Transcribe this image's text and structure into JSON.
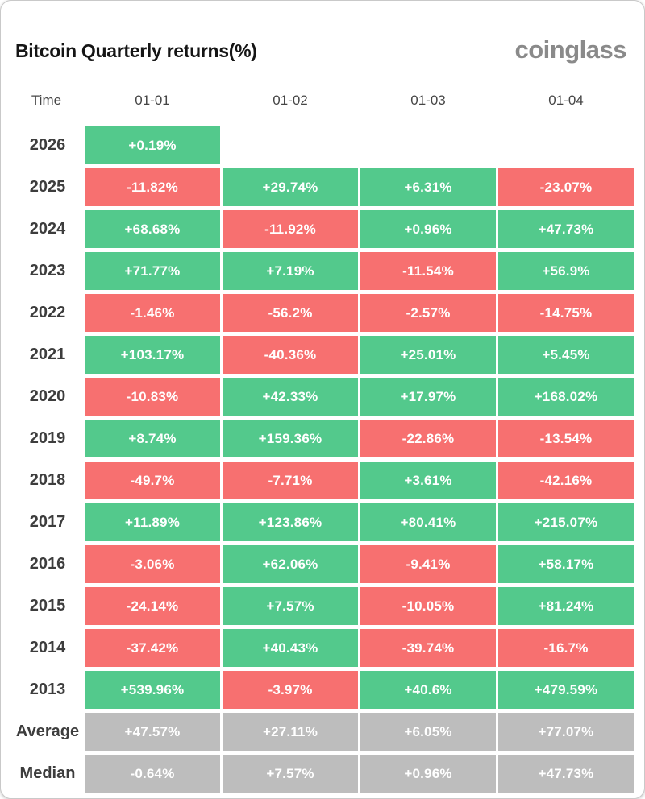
{
  "header": {
    "title": "Bitcoin Quarterly returns(%)",
    "logo": "coinglass"
  },
  "colors": {
    "positive": "#53c98c",
    "negative": "#f77070",
    "neutral": "#bdbdbd",
    "text": "#ffffff"
  },
  "chart_data": {
    "type": "heatmap",
    "title": "Bitcoin Quarterly returns(%)",
    "row_label_header": "Time",
    "columns": [
      "01-01",
      "01-02",
      "01-03",
      "01-04"
    ],
    "rows": [
      {
        "label": "2026",
        "kind": "year",
        "values": [
          "+0.19%",
          null,
          null,
          null
        ],
        "numeric": [
          0.19,
          null,
          null,
          null
        ]
      },
      {
        "label": "2025",
        "kind": "year",
        "values": [
          "-11.82%",
          "+29.74%",
          "+6.31%",
          "-23.07%"
        ],
        "numeric": [
          -11.82,
          29.74,
          6.31,
          -23.07
        ]
      },
      {
        "label": "2024",
        "kind": "year",
        "values": [
          "+68.68%",
          "-11.92%",
          "+0.96%",
          "+47.73%"
        ],
        "numeric": [
          68.68,
          -11.92,
          0.96,
          47.73
        ]
      },
      {
        "label": "2023",
        "kind": "year",
        "values": [
          "+71.77%",
          "+7.19%",
          "-11.54%",
          "+56.9%"
        ],
        "numeric": [
          71.77,
          7.19,
          -11.54,
          56.9
        ]
      },
      {
        "label": "2022",
        "kind": "year",
        "values": [
          "-1.46%",
          "-56.2%",
          "-2.57%",
          "-14.75%"
        ],
        "numeric": [
          -1.46,
          -56.2,
          -2.57,
          -14.75
        ]
      },
      {
        "label": "2021",
        "kind": "year",
        "values": [
          "+103.17%",
          "-40.36%",
          "+25.01%",
          "+5.45%"
        ],
        "numeric": [
          103.17,
          -40.36,
          25.01,
          5.45
        ]
      },
      {
        "label": "2020",
        "kind": "year",
        "values": [
          "-10.83%",
          "+42.33%",
          "+17.97%",
          "+168.02%"
        ],
        "numeric": [
          -10.83,
          42.33,
          17.97,
          168.02
        ]
      },
      {
        "label": "2019",
        "kind": "year",
        "values": [
          "+8.74%",
          "+159.36%",
          "-22.86%",
          "-13.54%"
        ],
        "numeric": [
          8.74,
          159.36,
          -22.86,
          -13.54
        ]
      },
      {
        "label": "2018",
        "kind": "year",
        "values": [
          "-49.7%",
          "-7.71%",
          "+3.61%",
          "-42.16%"
        ],
        "numeric": [
          -49.7,
          -7.71,
          3.61,
          -42.16
        ]
      },
      {
        "label": "2017",
        "kind": "year",
        "values": [
          "+11.89%",
          "+123.86%",
          "+80.41%",
          "+215.07%"
        ],
        "numeric": [
          11.89,
          123.86,
          80.41,
          215.07
        ]
      },
      {
        "label": "2016",
        "kind": "year",
        "values": [
          "-3.06%",
          "+62.06%",
          "-9.41%",
          "+58.17%"
        ],
        "numeric": [
          -3.06,
          62.06,
          -9.41,
          58.17
        ]
      },
      {
        "label": "2015",
        "kind": "year",
        "values": [
          "-24.14%",
          "+7.57%",
          "-10.05%",
          "+81.24%"
        ],
        "numeric": [
          -24.14,
          7.57,
          -10.05,
          81.24
        ]
      },
      {
        "label": "2014",
        "kind": "year",
        "values": [
          "-37.42%",
          "+40.43%",
          "-39.74%",
          "-16.7%"
        ],
        "numeric": [
          -37.42,
          40.43,
          -39.74,
          -16.7
        ]
      },
      {
        "label": "2013",
        "kind": "year",
        "values": [
          "+539.96%",
          "-3.97%",
          "+40.6%",
          "+479.59%"
        ],
        "numeric": [
          539.96,
          -3.97,
          40.6,
          479.59
        ]
      },
      {
        "label": "Average",
        "kind": "summary",
        "values": [
          "+47.57%",
          "+27.11%",
          "+6.05%",
          "+77.07%"
        ],
        "numeric": [
          47.57,
          27.11,
          6.05,
          77.07
        ]
      },
      {
        "label": "Median",
        "kind": "summary",
        "values": [
          "-0.64%",
          "+7.57%",
          "+0.96%",
          "+47.73%"
        ],
        "numeric": [
          -0.64,
          7.57,
          0.96,
          47.73
        ]
      }
    ],
    "legend": "off",
    "grid": "off",
    "cell_color_rule": "positive=green, negative=red, summary rows=gray"
  }
}
